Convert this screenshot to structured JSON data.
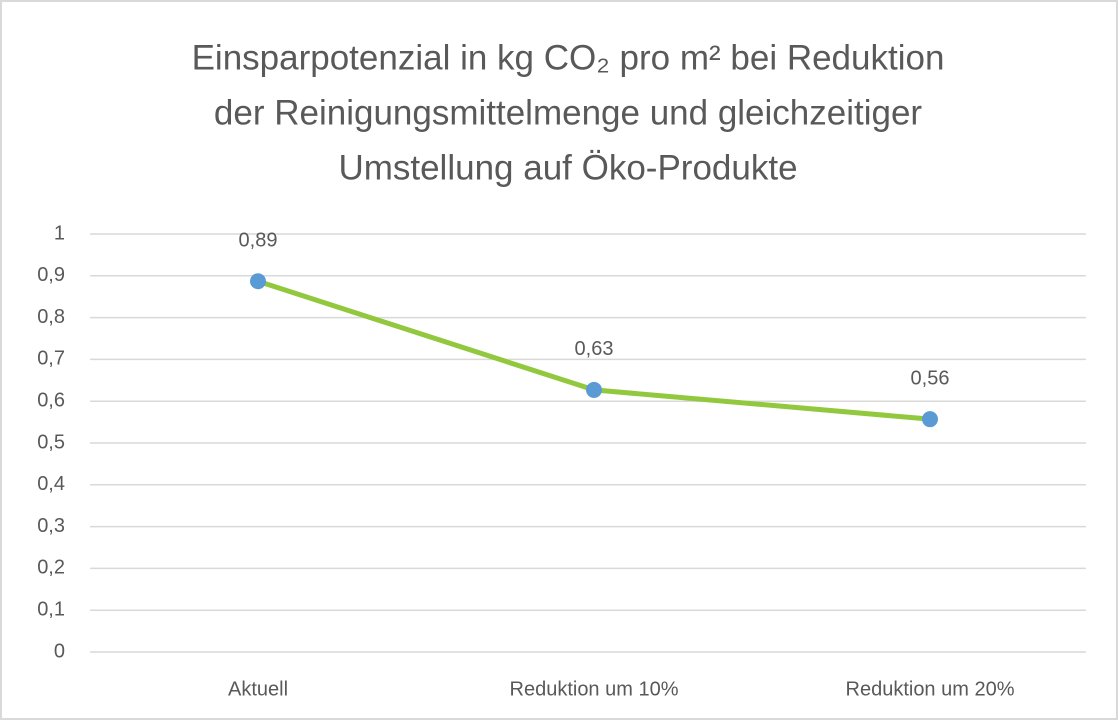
{
  "chart_data": {
    "type": "line",
    "title": [
      "Einsparpotenzial in kg CO₂ pro m² bei Reduktion",
      "der Reinigungsmittelmenge und gleichzeitiger",
      "Umstellung auf Öko-Produkte"
    ],
    "categories": [
      "Aktuell",
      "Reduktion um 10%",
      "Reduktion um 20%"
    ],
    "series": [
      {
        "color": "#92c83e",
        "marker_color": "#5b9bd5",
        "values": [
          0.887,
          0.627,
          0.557
        ],
        "value_labels": [
          "0,89",
          "0,63",
          "0,56"
        ]
      }
    ],
    "ylim": [
      0,
      1
    ],
    "yticks": [
      0,
      {
        "value": 0.1,
        "label": "0,1"
      },
      {
        "value": 0.2,
        "label": "0,2"
      },
      {
        "value": 0.3,
        "label": "0,3"
      },
      {
        "value": 0.4,
        "label": "0,4"
      },
      {
        "value": 0.5,
        "label": "0,5"
      },
      {
        "value": 0.6,
        "label": "0,6"
      },
      {
        "value": 0.7,
        "label": "0,7"
      },
      {
        "value": 0.8,
        "label": "0,8"
      },
      {
        "value": 0.9,
        "label": "0,9"
      },
      1
    ],
    "grid": true
  }
}
